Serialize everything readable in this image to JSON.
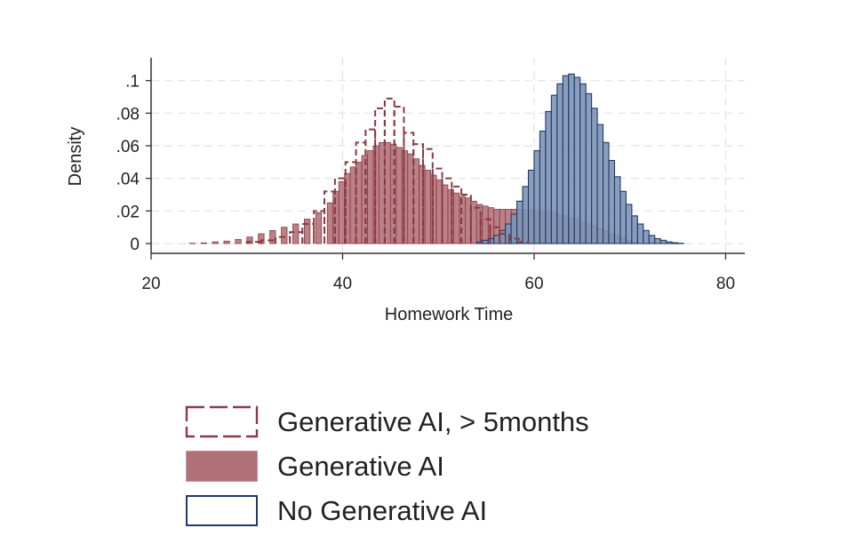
{
  "chart_data": {
    "type": "bar",
    "subtype": "overlaid histograms",
    "xlabel": "Homework Time",
    "ylabel": "Density",
    "xlim": [
      20,
      82
    ],
    "ylim": [
      -0.006,
      0.114
    ],
    "x_ticks": [
      {
        "value": 20,
        "label": "20"
      },
      {
        "value": 40,
        "label": "40"
      },
      {
        "value": 60,
        "label": "60"
      },
      {
        "value": 80,
        "label": "80"
      }
    ],
    "y_ticks": [
      {
        "value": 0,
        "label": "0"
      },
      {
        "value": 0.02,
        "label": ".02"
      },
      {
        "value": 0.04,
        "label": ".04"
      },
      {
        "value": 0.06,
        "label": ".06"
      },
      {
        "value": 0.08,
        "label": ".08"
      },
      {
        "value": 0.1,
        "label": ".1"
      }
    ],
    "grid": true,
    "legend_position": "bottom",
    "bin_width": 0.6,
    "series": [
      {
        "name": "No Generative AI",
        "style": "outline",
        "fill": "#7d93b4",
        "stroke": "#1f3b6b",
        "x": [
          54.0,
          54.6,
          55.2,
          55.8,
          56.4,
          57.0,
          57.6,
          58.2,
          58.8,
          59.4,
          60.0,
          60.6,
          61.2,
          61.8,
          62.4,
          63.0,
          63.6,
          64.2,
          64.8,
          65.4,
          66.0,
          66.6,
          67.2,
          67.8,
          68.4,
          69.0,
          69.6,
          70.2,
          70.8,
          71.4,
          72.0,
          72.6,
          73.2,
          73.8,
          74.4,
          75.0
        ],
        "values": [
          0.001,
          0.002,
          0.003,
          0.005,
          0.008,
          0.012,
          0.018,
          0.026,
          0.035,
          0.045,
          0.057,
          0.069,
          0.081,
          0.091,
          0.098,
          0.103,
          0.104,
          0.102,
          0.098,
          0.092,
          0.083,
          0.073,
          0.062,
          0.051,
          0.041,
          0.032,
          0.024,
          0.017,
          0.012,
          0.008,
          0.005,
          0.003,
          0.002,
          0.001,
          0.0005,
          0.0002
        ]
      },
      {
        "name": "Generative AI",
        "style": "filled",
        "fill": "#b07078",
        "stroke": "#8a3a44",
        "x": [
          24.0,
          25.2,
          26.4,
          27.6,
          28.8,
          30.0,
          31.2,
          32.4,
          33.6,
          34.8,
          36.0,
          37.2,
          38.4,
          39.0,
          39.6,
          40.2,
          40.8,
          41.4,
          42.0,
          42.6,
          43.2,
          43.8,
          44.4,
          45.0,
          45.6,
          46.2,
          46.8,
          47.4,
          48.0,
          48.6,
          49.2,
          49.8,
          50.4,
          51.0,
          51.6,
          52.2,
          52.8,
          53.4,
          54.0,
          54.6,
          55.2,
          55.8,
          56.4,
          57.0,
          57.6,
          58.2,
          58.8,
          59.4,
          60.0,
          60.6,
          61.2,
          61.8,
          62.4,
          63.0,
          63.6,
          64.2,
          64.8,
          65.4,
          66.0,
          66.6,
          67.2,
          67.8,
          68.4,
          69.0,
          69.6,
          70.2
        ],
        "values": [
          0.0002,
          0.0004,
          0.001,
          0.0015,
          0.0025,
          0.004,
          0.006,
          0.008,
          0.01,
          0.012,
          0.015,
          0.019,
          0.025,
          0.032,
          0.038,
          0.043,
          0.047,
          0.05,
          0.054,
          0.057,
          0.06,
          0.062,
          0.062,
          0.061,
          0.059,
          0.057,
          0.055,
          0.052,
          0.048,
          0.045,
          0.042,
          0.039,
          0.036,
          0.033,
          0.031,
          0.029,
          0.028,
          0.026,
          0.024,
          0.023,
          0.022,
          0.021,
          0.021,
          0.021,
          0.021,
          0.021,
          0.021,
          0.021,
          0.02,
          0.02,
          0.02,
          0.019,
          0.018,
          0.017,
          0.016,
          0.015,
          0.013,
          0.012,
          0.011,
          0.009,
          0.008,
          0.006,
          0.005,
          0.004,
          0.002,
          0.001
        ]
      },
      {
        "name": "Generative AI, > 5months",
        "style": "dashed-outline",
        "stroke": "#8a3a44",
        "x": [
          30.0,
          31.5,
          33.0,
          34.5,
          35.8,
          37.0,
          38.1,
          39.2,
          40.3,
          41.4,
          42.4,
          43.4,
          44.4,
          45.4,
          46.4,
          47.4,
          48.4,
          49.4,
          50.4,
          51.4,
          52.4,
          53.4,
          54.4,
          55.4,
          56.4,
          57.4,
          58.4
        ],
        "values": [
          0.001,
          0.002,
          0.004,
          0.007,
          0.012,
          0.02,
          0.032,
          0.04,
          0.05,
          0.062,
          0.07,
          0.083,
          0.089,
          0.084,
          0.068,
          0.061,
          0.058,
          0.046,
          0.04,
          0.035,
          0.03,
          0.022,
          0.015,
          0.01,
          0.006,
          0.003,
          0.001
        ]
      }
    ],
    "legend": [
      {
        "label": "Generative AI, > 5months",
        "style": "dashed-outline",
        "stroke": "#8a3a44"
      },
      {
        "label": "Generative AI",
        "style": "filled",
        "fill": "#b07078",
        "stroke": "#b07078"
      },
      {
        "label": "No Generative AI",
        "style": "outline",
        "fill": "#ffffff",
        "stroke": "#1f3b6b"
      }
    ]
  }
}
